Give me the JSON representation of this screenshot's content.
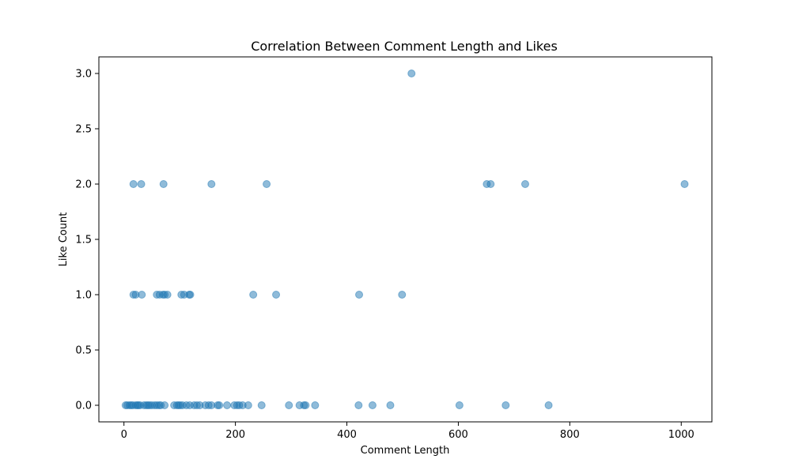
{
  "chart_data": {
    "type": "scatter",
    "title": "Correlation Between Comment Length and Likes",
    "xlabel": "Comment Length",
    "ylabel": "Like Count",
    "xlim": [
      -45,
      1055
    ],
    "ylim": [
      -0.15,
      3.15
    ],
    "xticks": [
      0,
      200,
      400,
      600,
      800,
      1000
    ],
    "yticks": [
      0.0,
      0.5,
      1.0,
      1.5,
      2.0,
      2.5,
      3.0
    ],
    "xtick_labels": [
      "0",
      "200",
      "400",
      "600",
      "800",
      "1000"
    ],
    "ytick_labels": [
      "0.0",
      "0.5",
      "1.0",
      "1.5",
      "2.0",
      "2.5",
      "3.0"
    ],
    "grid": false,
    "marker_color": "#1f77b4",
    "marker_alpha": 0.5,
    "points": [
      {
        "x": 3,
        "y": 0
      },
      {
        "x": 6,
        "y": 0
      },
      {
        "x": 10,
        "y": 0
      },
      {
        "x": 13,
        "y": 0
      },
      {
        "x": 16,
        "y": 0
      },
      {
        "x": 21,
        "y": 0
      },
      {
        "x": 24,
        "y": 0
      },
      {
        "x": 26,
        "y": 0
      },
      {
        "x": 29,
        "y": 0
      },
      {
        "x": 36,
        "y": 0
      },
      {
        "x": 40,
        "y": 0
      },
      {
        "x": 43,
        "y": 0
      },
      {
        "x": 46,
        "y": 0
      },
      {
        "x": 50,
        "y": 0
      },
      {
        "x": 55,
        "y": 0
      },
      {
        "x": 59,
        "y": 0
      },
      {
        "x": 63,
        "y": 0
      },
      {
        "x": 66,
        "y": 0
      },
      {
        "x": 73,
        "y": 0
      },
      {
        "x": 90,
        "y": 0
      },
      {
        "x": 95,
        "y": 0
      },
      {
        "x": 98,
        "y": 0
      },
      {
        "x": 101,
        "y": 0
      },
      {
        "x": 105,
        "y": 0
      },
      {
        "x": 112,
        "y": 0
      },
      {
        "x": 118,
        "y": 0
      },
      {
        "x": 126,
        "y": 0
      },
      {
        "x": 131,
        "y": 0
      },
      {
        "x": 136,
        "y": 0
      },
      {
        "x": 146,
        "y": 0
      },
      {
        "x": 152,
        "y": 0
      },
      {
        "x": 157,
        "y": 0
      },
      {
        "x": 168,
        "y": 0
      },
      {
        "x": 171,
        "y": 0
      },
      {
        "x": 185,
        "y": 0
      },
      {
        "x": 198,
        "y": 0
      },
      {
        "x": 203,
        "y": 0
      },
      {
        "x": 207,
        "y": 0
      },
      {
        "x": 213,
        "y": 0
      },
      {
        "x": 223,
        "y": 0
      },
      {
        "x": 247,
        "y": 0
      },
      {
        "x": 296,
        "y": 0
      },
      {
        "x": 315,
        "y": 0
      },
      {
        "x": 323,
        "y": 0
      },
      {
        "x": 326,
        "y": 0
      },
      {
        "x": 343,
        "y": 0
      },
      {
        "x": 421,
        "y": 0
      },
      {
        "x": 446,
        "y": 0
      },
      {
        "x": 478,
        "y": 0
      },
      {
        "x": 602,
        "y": 0
      },
      {
        "x": 685,
        "y": 0
      },
      {
        "x": 762,
        "y": 0
      },
      {
        "x": 17,
        "y": 1
      },
      {
        "x": 21,
        "y": 1
      },
      {
        "x": 32,
        "y": 1
      },
      {
        "x": 59,
        "y": 1
      },
      {
        "x": 64,
        "y": 1
      },
      {
        "x": 70,
        "y": 1
      },
      {
        "x": 73,
        "y": 1
      },
      {
        "x": 78,
        "y": 1
      },
      {
        "x": 103,
        "y": 1
      },
      {
        "x": 108,
        "y": 1
      },
      {
        "x": 117,
        "y": 1
      },
      {
        "x": 119,
        "y": 1
      },
      {
        "x": 232,
        "y": 1
      },
      {
        "x": 273,
        "y": 1
      },
      {
        "x": 422,
        "y": 1
      },
      {
        "x": 499,
        "y": 1
      },
      {
        "x": 17,
        "y": 2
      },
      {
        "x": 31,
        "y": 2
      },
      {
        "x": 71,
        "y": 2
      },
      {
        "x": 157,
        "y": 2
      },
      {
        "x": 256,
        "y": 2
      },
      {
        "x": 651,
        "y": 2
      },
      {
        "x": 658,
        "y": 2
      },
      {
        "x": 720,
        "y": 2
      },
      {
        "x": 1006,
        "y": 2
      },
      {
        "x": 516,
        "y": 3
      }
    ]
  }
}
